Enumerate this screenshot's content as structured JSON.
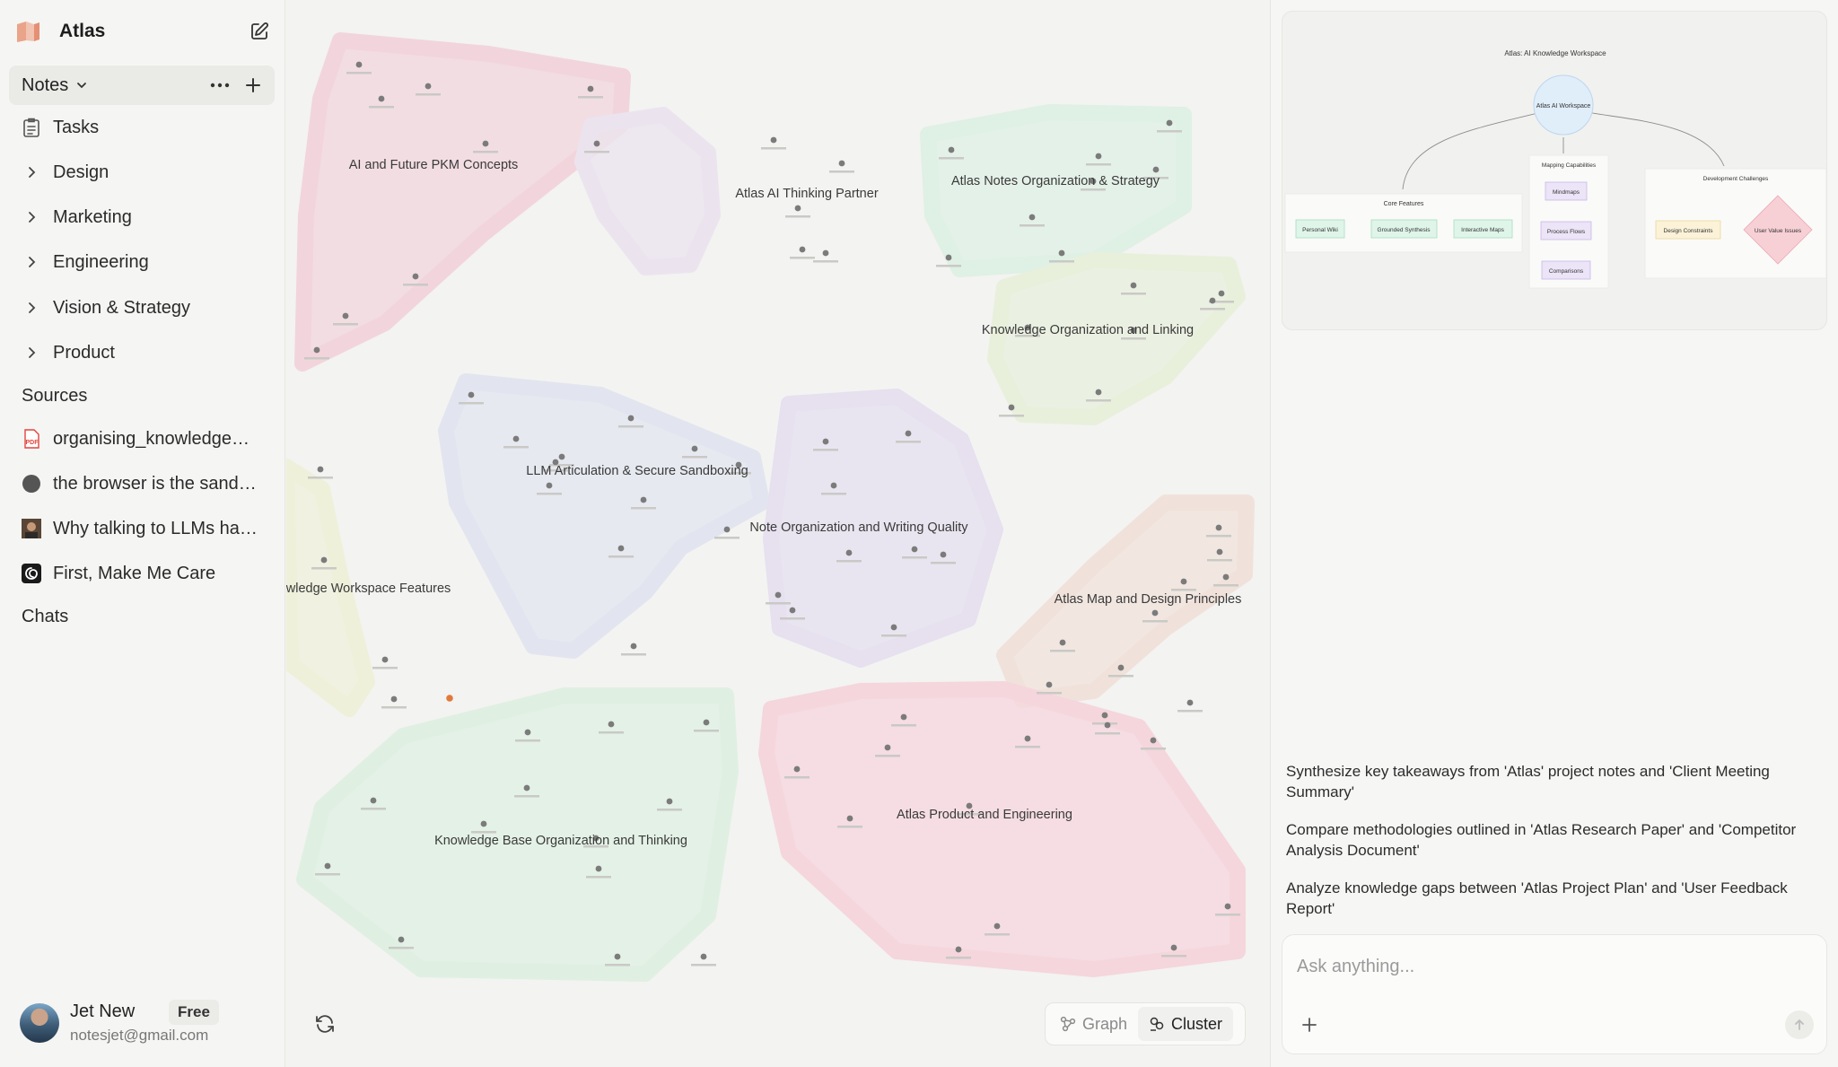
{
  "app": {
    "title": "Atlas"
  },
  "sidebar": {
    "notes_label": "Notes",
    "items": [
      {
        "label": "Tasks",
        "icon": "clipboard-list-icon"
      },
      {
        "label": "Design",
        "icon": "chevron-right-icon"
      },
      {
        "label": "Marketing",
        "icon": "chevron-right-icon"
      },
      {
        "label": "Engineering",
        "icon": "chevron-right-icon"
      },
      {
        "label": "Vision & Strategy",
        "icon": "chevron-right-icon"
      },
      {
        "label": "Product",
        "icon": "chevron-right-icon"
      }
    ],
    "sources_label": "Sources",
    "sources": [
      {
        "label": "organising_knowledge…",
        "icon": "pdf-icon"
      },
      {
        "label": "the browser is the sand…",
        "icon": "dark-circle-icon"
      },
      {
        "label": "Why talking to LLMs ha…",
        "icon": "thumbnail-icon"
      },
      {
        "label": "First, Make Me Care",
        "icon": "spiral-logo-icon"
      }
    ],
    "chats_label": "Chats"
  },
  "user": {
    "name": "Jet New",
    "plan": "Free",
    "email": "notesjet@gmail.com"
  },
  "canvas": {
    "clusters": [
      {
        "label": "AI and Future PKM Concepts",
        "color": "#f2d5dc"
      },
      {
        "label": "Atlas AI Thinking Partner",
        "color": "#ebe4ef"
      },
      {
        "label": "Atlas Notes Organization & Strategy",
        "color": "#dff0e4"
      },
      {
        "label": "Knowledge Organization and Linking",
        "color": "#e8f0dc"
      },
      {
        "label": "LLM Articulation & Secure Sandboxing",
        "color": "#e2e5ef"
      },
      {
        "label": "Note Organization and Writing Quality",
        "color": "#e6e0ef"
      },
      {
        "label": "l Knowledge Workspace Features",
        "color": "#eff0da"
      },
      {
        "label": "Atlas Map and Design Principles",
        "color": "#f0e2da"
      },
      {
        "label": "Knowledge Base Organization and Thinking",
        "color": "#dff0e2"
      },
      {
        "label": "Atlas Product and Engineering",
        "color": "#f5d6dd"
      }
    ],
    "view_toggle": {
      "graph_label": "Graph",
      "cluster_label": "Cluster",
      "active": "Cluster"
    }
  },
  "diagram": {
    "title": "Atlas: AI Knowledge Workspace",
    "root": "Atlas AI Workspace",
    "groups": [
      {
        "title": "Core Features",
        "items": [
          "Personal Wiki",
          "Grounded Synthesis",
          "Interactive Maps"
        ]
      },
      {
        "title": "Mapping Capabilities",
        "items": [
          "Mindmaps",
          "Process Flows",
          "Comparisons"
        ]
      },
      {
        "title": "Development Challenges",
        "items": [
          "Design Constraints",
          "User Value Issues"
        ]
      }
    ]
  },
  "suggestions": [
    "Synthesize key takeaways from 'Atlas' project notes and 'Client Meeting Summary'",
    "Compare methodologies outlined in 'Atlas Research Paper' and 'Competitor Analysis Document'",
    "Analyze knowledge gaps between 'Atlas Project Plan' and 'User Feedback Report'"
  ],
  "chat": {
    "placeholder": "Ask anything..."
  }
}
